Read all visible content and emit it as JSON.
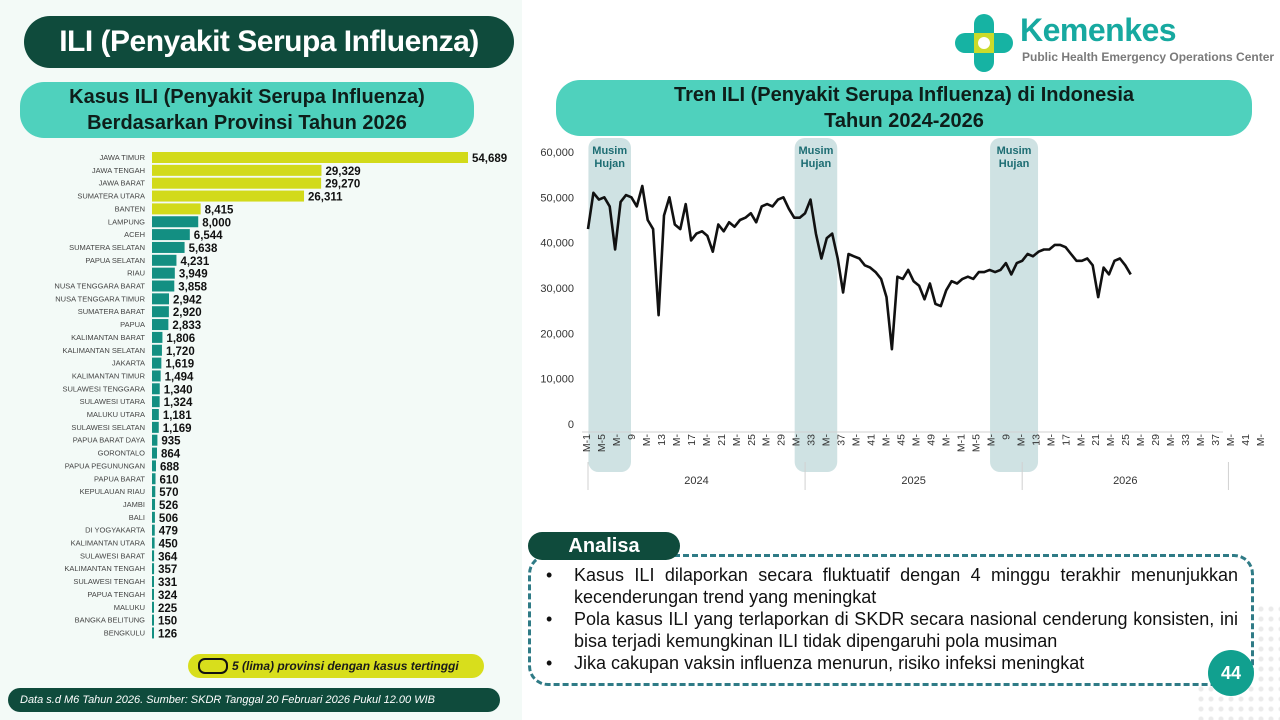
{
  "main_title": "ILI (Penyakit Serupa Influenza)",
  "left_subtitle": [
    "Kasus ILI (Penyakit Serupa Influenza)",
    "Berdasarkan Provinsi Tahun 2026"
  ],
  "right_subtitle": [
    "Tren ILI (Penyakit Serupa Influenza) di Indonesia",
    "Tahun 2024-2026"
  ],
  "logo": {
    "name": "Kemenkes",
    "subtitle": "Public Health Emergency Operations Center"
  },
  "colors": {
    "top5": "#d2da1a",
    "other": "#138f82",
    "dark": "#0f4b3c",
    "accent": "#4fd1bd",
    "season": "#cfe2e3"
  },
  "legend_note": "5 (lima) provinsi dengan kasus tertinggi",
  "footer": "Data s.d M6 Tahun 2026. Sumber: SKDR Tanggal 20 Februari 2026 Pukul 12.00 WIB",
  "analisa": {
    "label": "Analisa",
    "items": [
      "Kasus ILI dilaporkan secara fluktuatif dengan 4 minggu terakhir menunjukkan kecenderungan trend yang meningkat",
      "Pola kasus ILI yang terlaporkan di SKDR secara nasional cenderung konsisten, ini bisa terjadi kemungkinan ILI tidak dipengaruhi pola musiman",
      "Jika cakupan vaksin influenza menurun, risiko infeksi meningkat"
    ]
  },
  "page_number": "44",
  "chart_data": [
    {
      "type": "bar",
      "orientation": "horizontal",
      "categories": [
        "JAWA TIMUR",
        "JAWA TENGAH",
        "JAWA BARAT",
        "SUMATERA UTARA",
        "BANTEN",
        "LAMPUNG",
        "ACEH",
        "SUMATERA SELATAN",
        "PAPUA SELATAN",
        "RIAU",
        "NUSA TENGGARA BARAT",
        "NUSA TENGGARA TIMUR",
        "SUMATERA BARAT",
        "PAPUA",
        "KALIMANTAN BARAT",
        "KALIMANTAN SELATAN",
        "JAKARTA",
        "KALIMANTAN TIMUR",
        "SULAWESI TENGGARA",
        "SULAWESI UTARA",
        "MALUKU UTARA",
        "SULAWESI SELATAN",
        "PAPUA BARAT DAYA",
        "GORONTALO",
        "PAPUA PEGUNUNGAN",
        "PAPUA BARAT",
        "KEPULAUAN RIAU",
        "JAMBI",
        "BALI",
        "DI YOGYAKARTA",
        "KALIMANTAN UTARA",
        "SULAWESI BARAT",
        "KALIMANTAN TENGAH",
        "SULAWESI TENGAH",
        "PAPUA TENGAH",
        "MALUKU",
        "BANGKA BELITUNG",
        "BENGKULU"
      ],
      "values": [
        54689,
        29329,
        29270,
        26311,
        8415,
        8000,
        6544,
        5638,
        4231,
        3949,
        3858,
        2942,
        2920,
        2833,
        1806,
        1720,
        1619,
        1494,
        1340,
        1324,
        1181,
        1169,
        935,
        864,
        688,
        610,
        570,
        526,
        506,
        479,
        450,
        364,
        357,
        331,
        324,
        225,
        150,
        126
      ],
      "value_labels": [
        "54,689",
        "29,329",
        "29,270",
        "26,311",
        "8,415",
        "8,000",
        "6,544",
        "5,638",
        "4,231",
        "3,949",
        "3,858",
        "2,942",
        "2,920",
        "2,833",
        "1,806",
        "1,720",
        "1,619",
        "1,494",
        "1,340",
        "1,324",
        "1,181",
        "1,169",
        "935",
        "864",
        "688",
        "610",
        "570",
        "526",
        "506",
        "479",
        "450",
        "364",
        "357",
        "331",
        "324",
        "225",
        "150",
        "126"
      ],
      "highlight_top": 5,
      "xlim": [
        0,
        54689
      ]
    },
    {
      "type": "line",
      "ylim": [
        0,
        60000
      ],
      "y_ticks": [
        "0",
        "10,000",
        "20,000",
        "30,000",
        "40,000",
        "50,000",
        "60,000"
      ],
      "y_tick_values": [
        0,
        10000,
        20000,
        30000,
        40000,
        50000,
        60000
      ],
      "week_labels": [
        "M-1",
        "M-5",
        "M-",
        "9",
        "M-",
        "13",
        "M-",
        "17",
        "M-",
        "21",
        "M-",
        "25",
        "M-",
        "29",
        "M-",
        "33",
        "M-",
        "37",
        "M-",
        "41",
        "M-",
        "45",
        "M-",
        "49",
        "M-",
        "M-1",
        "M-5",
        "M-",
        "9",
        "M-",
        "13",
        "M-",
        "17",
        "M-",
        "21",
        "M-",
        "25",
        "M-",
        "29",
        "M-",
        "33",
        "M-",
        "37",
        "M-",
        "41",
        "M-"
      ],
      "years": [
        "2024",
        "2025",
        "2026"
      ],
      "season_label": "Musim Hujan",
      "season_ranges_week": [
        [
          1,
          7
        ],
        [
          39,
          45
        ],
        [
          75,
          82
        ]
      ],
      "weeks_total": 118,
      "year_bounds_week": [
        0,
        40,
        80,
        118
      ],
      "series": [
        {
          "values": [
            43000,
            51000,
            49500,
            50000,
            48000,
            38500,
            49000,
            50500,
            50000,
            48000,
            52500,
            45000,
            43000,
            24000,
            46000,
            50000,
            44000,
            43000,
            48500,
            40500,
            42000,
            42500,
            41500,
            38000,
            44000,
            42500,
            44500,
            43500,
            45000,
            45500,
            46500,
            44500,
            48000,
            48500,
            48000,
            49500,
            50000,
            47500,
            45500,
            45500,
            46500,
            49500,
            42000,
            36500,
            41000,
            42000,
            36500,
            29000,
            37500,
            37000,
            36500,
            35000,
            34500,
            33500,
            32000,
            28000,
            16500,
            32500,
            32000,
            34000,
            31500,
            30500,
            27500,
            31000,
            26500,
            26000,
            29500,
            31500,
            31000,
            32000,
            32500,
            32000,
            33500,
            33500,
            34000,
            33500,
            34000,
            35500,
            33000,
            35500,
            36000,
            37500,
            37000,
            38000,
            38500,
            38500,
            39500,
            39500,
            39000,
            37500,
            36000,
            36000,
            36500,
            35000,
            28000,
            34500,
            33000,
            36000,
            36500,
            35000,
            33000
          ]
        }
      ]
    }
  ]
}
